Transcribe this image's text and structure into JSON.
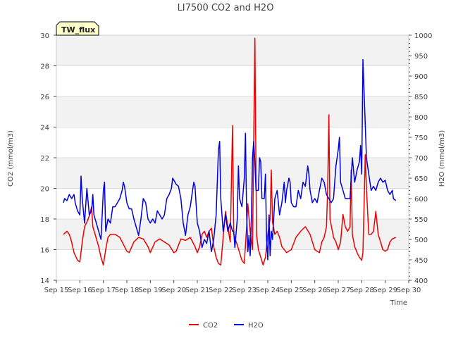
{
  "chart_data": {
    "type": "line",
    "title": "LI7500 CO2 and H2O",
    "xlabel": "Time",
    "ylabel_left": "CO2 (mmol/m3)",
    "ylabel_right": "H2O (mmol/m3)",
    "badge": "TW_flux",
    "x_unit": "days since Sep 15",
    "xlim": [
      0,
      15
    ],
    "ylim_left": [
      14,
      30
    ],
    "ylim_right": [
      400,
      1000
    ],
    "x_ticks": [
      {
        "x": 0,
        "label": "Sep 15"
      },
      {
        "x": 1,
        "label": "Sep 16"
      },
      {
        "x": 2,
        "label": "Sep 17"
      },
      {
        "x": 3,
        "label": "Sep 18"
      },
      {
        "x": 4,
        "label": "Sep 19"
      },
      {
        "x": 5,
        "label": "Sep 20"
      },
      {
        "x": 6,
        "label": "Sep 21"
      },
      {
        "x": 7,
        "label": "Sep 22"
      },
      {
        "x": 8,
        "label": "Sep 23"
      },
      {
        "x": 9,
        "label": "Sep 24"
      },
      {
        "x": 10,
        "label": "Sep 25"
      },
      {
        "x": 11,
        "label": "Sep 26"
      },
      {
        "x": 12,
        "label": "Sep 27"
      },
      {
        "x": 13,
        "label": "Sep 28"
      },
      {
        "x": 14,
        "label": "Sep 29"
      },
      {
        "x": 15,
        "label": "Sep 30"
      }
    ],
    "y_ticks_left": [
      14,
      16,
      18,
      20,
      22,
      24,
      26,
      28,
      30
    ],
    "y_ticks_right": [
      400,
      450,
      500,
      550,
      600,
      650,
      700,
      750,
      800,
      850,
      900,
      950,
      1000
    ],
    "legend": [
      {
        "name": "CO2",
        "color": "#ee0000"
      },
      {
        "name": "H2O",
        "color": "#0000dd"
      }
    ],
    "series": [
      {
        "name": "CO2",
        "axis": "left",
        "color": "#ee0000",
        "points": [
          [
            0.3,
            17.0
          ],
          [
            0.45,
            17.2
          ],
          [
            0.55,
            17.0
          ],
          [
            0.65,
            16.5
          ],
          [
            0.75,
            15.8
          ],
          [
            0.9,
            15.3
          ],
          [
            1.0,
            15.2
          ],
          [
            1.1,
            16.5
          ],
          [
            1.2,
            17.5
          ],
          [
            1.3,
            17.8
          ],
          [
            1.4,
            18.2
          ],
          [
            1.5,
            18.8
          ],
          [
            1.55,
            17.5
          ],
          [
            1.65,
            17.0
          ],
          [
            1.8,
            16.2
          ],
          [
            1.9,
            15.5
          ],
          [
            2.0,
            15.0
          ],
          [
            2.1,
            16.0
          ],
          [
            2.2,
            16.8
          ],
          [
            2.3,
            17.0
          ],
          [
            2.5,
            17.0
          ],
          [
            2.7,
            16.8
          ],
          [
            2.9,
            16.2
          ],
          [
            3.0,
            15.9
          ],
          [
            3.1,
            15.8
          ],
          [
            3.3,
            16.5
          ],
          [
            3.5,
            16.8
          ],
          [
            3.7,
            16.7
          ],
          [
            3.9,
            16.2
          ],
          [
            4.0,
            15.8
          ],
          [
            4.2,
            16.5
          ],
          [
            4.4,
            16.7
          ],
          [
            4.6,
            16.5
          ],
          [
            4.8,
            16.3
          ],
          [
            5.0,
            15.8
          ],
          [
            5.1,
            15.9
          ],
          [
            5.3,
            16.7
          ],
          [
            5.5,
            16.6
          ],
          [
            5.7,
            16.8
          ],
          [
            5.9,
            16.2
          ],
          [
            6.0,
            15.8
          ],
          [
            6.1,
            16.2
          ],
          [
            6.2,
            17.0
          ],
          [
            6.3,
            17.2
          ],
          [
            6.4,
            16.8
          ],
          [
            6.5,
            17.2
          ],
          [
            6.6,
            17.4
          ],
          [
            6.7,
            16.2
          ],
          [
            6.8,
            15.5
          ],
          [
            6.9,
            15.1
          ],
          [
            7.0,
            15.0
          ],
          [
            7.1,
            16.8
          ],
          [
            7.2,
            18.5
          ],
          [
            7.3,
            17.5
          ],
          [
            7.4,
            16.5
          ],
          [
            7.5,
            24.1
          ],
          [
            7.55,
            17.0
          ],
          [
            7.7,
            16.3
          ],
          [
            7.8,
            15.8
          ],
          [
            7.9,
            15.3
          ],
          [
            8.0,
            15.1
          ],
          [
            8.1,
            17.5
          ],
          [
            8.15,
            19.0
          ],
          [
            8.25,
            17.2
          ],
          [
            8.35,
            16.0
          ],
          [
            8.45,
            29.8
          ],
          [
            8.52,
            17.0
          ],
          [
            8.6,
            16.0
          ],
          [
            8.7,
            15.5
          ],
          [
            8.8,
            15.0
          ],
          [
            8.9,
            15.5
          ],
          [
            9.0,
            17.0
          ],
          [
            9.1,
            18.0
          ],
          [
            9.15,
            21.2
          ],
          [
            9.2,
            17.8
          ],
          [
            9.3,
            17.0
          ],
          [
            9.4,
            17.2
          ],
          [
            9.5,
            16.8
          ],
          [
            9.6,
            16.2
          ],
          [
            9.8,
            15.8
          ],
          [
            10.0,
            16.0
          ],
          [
            10.2,
            16.8
          ],
          [
            10.4,
            17.2
          ],
          [
            10.6,
            17.5
          ],
          [
            10.8,
            17.0
          ],
          [
            11.0,
            16.0
          ],
          [
            11.1,
            15.9
          ],
          [
            11.2,
            15.8
          ],
          [
            11.3,
            16.5
          ],
          [
            11.4,
            16.8
          ],
          [
            11.5,
            17.5
          ],
          [
            11.55,
            20.0
          ],
          [
            11.6,
            24.8
          ],
          [
            11.65,
            18.0
          ],
          [
            11.8,
            16.8
          ],
          [
            11.9,
            16.5
          ],
          [
            12.0,
            16.0
          ],
          [
            12.1,
            16.5
          ],
          [
            12.2,
            18.3
          ],
          [
            12.3,
            17.5
          ],
          [
            12.4,
            17.2
          ],
          [
            12.5,
            17.5
          ],
          [
            12.55,
            21.2
          ],
          [
            12.6,
            17.0
          ],
          [
            12.7,
            16.2
          ],
          [
            12.8,
            15.8
          ],
          [
            12.9,
            15.5
          ],
          [
            13.0,
            15.3
          ],
          [
            13.05,
            15.8
          ],
          [
            13.1,
            19.0
          ],
          [
            13.15,
            22.2
          ],
          [
            13.2,
            20.0
          ],
          [
            13.3,
            17.0
          ],
          [
            13.4,
            17.0
          ],
          [
            13.5,
            17.2
          ],
          [
            13.6,
            18.5
          ],
          [
            13.7,
            17.0
          ],
          [
            13.8,
            16.5
          ],
          [
            13.9,
            16.0
          ],
          [
            14.0,
            15.9
          ],
          [
            14.1,
            16.0
          ],
          [
            14.2,
            16.5
          ],
          [
            14.3,
            16.7
          ],
          [
            14.45,
            16.8
          ]
        ]
      },
      {
        "name": "H2O",
        "axis": "right",
        "color": "#0000dd",
        "points": [
          [
            0.3,
            590
          ],
          [
            0.35,
            600
          ],
          [
            0.45,
            595
          ],
          [
            0.55,
            610
          ],
          [
            0.65,
            600
          ],
          [
            0.75,
            610
          ],
          [
            0.8,
            590
          ],
          [
            0.9,
            570
          ],
          [
            1.0,
            560
          ],
          [
            1.05,
            655
          ],
          [
            1.1,
            600
          ],
          [
            1.2,
            540
          ],
          [
            1.3,
            625
          ],
          [
            1.4,
            560
          ],
          [
            1.5,
            570
          ],
          [
            1.55,
            610
          ],
          [
            1.6,
            560
          ],
          [
            1.7,
            540
          ],
          [
            1.8,
            520
          ],
          [
            1.9,
            500
          ],
          [
            2.0,
            620
          ],
          [
            2.05,
            640
          ],
          [
            2.1,
            520
          ],
          [
            2.2,
            550
          ],
          [
            2.3,
            540
          ],
          [
            2.4,
            580
          ],
          [
            2.5,
            580
          ],
          [
            2.6,
            590
          ],
          [
            2.7,
            600
          ],
          [
            2.8,
            620
          ],
          [
            2.85,
            640
          ],
          [
            2.9,
            630
          ],
          [
            3.0,
            590
          ],
          [
            3.1,
            575
          ],
          [
            3.2,
            575
          ],
          [
            3.3,
            550
          ],
          [
            3.5,
            510
          ],
          [
            3.6,
            550
          ],
          [
            3.7,
            600
          ],
          [
            3.8,
            590
          ],
          [
            3.9,
            550
          ],
          [
            4.0,
            540
          ],
          [
            4.1,
            550
          ],
          [
            4.2,
            540
          ],
          [
            4.3,
            570
          ],
          [
            4.5,
            550
          ],
          [
            4.6,
            560
          ],
          [
            4.7,
            600
          ],
          [
            4.8,
            610
          ],
          [
            4.9,
            625
          ],
          [
            4.95,
            650
          ],
          [
            5.0,
            645
          ],
          [
            5.1,
            635
          ],
          [
            5.2,
            630
          ],
          [
            5.3,
            600
          ],
          [
            5.4,
            540
          ],
          [
            5.5,
            510
          ],
          [
            5.6,
            560
          ],
          [
            5.7,
            580
          ],
          [
            5.8,
            620
          ],
          [
            5.85,
            640
          ],
          [
            5.9,
            630
          ],
          [
            6.0,
            540
          ],
          [
            6.1,
            520
          ],
          [
            6.2,
            480
          ],
          [
            6.3,
            500
          ],
          [
            6.4,
            490
          ],
          [
            6.5,
            520
          ],
          [
            6.6,
            470
          ],
          [
            6.7,
            500
          ],
          [
            6.8,
            560
          ],
          [
            6.9,
            720
          ],
          [
            6.95,
            740
          ],
          [
            7.0,
            600
          ],
          [
            7.1,
            520
          ],
          [
            7.2,
            560
          ],
          [
            7.3,
            520
          ],
          [
            7.4,
            540
          ],
          [
            7.5,
            520
          ],
          [
            7.55,
            520
          ],
          [
            7.6,
            480
          ],
          [
            7.7,
            550
          ],
          [
            7.75,
            680
          ],
          [
            7.8,
            600
          ],
          [
            7.9,
            580
          ],
          [
            8.0,
            650
          ],
          [
            8.05,
            760
          ],
          [
            8.1,
            560
          ],
          [
            8.15,
            470
          ],
          [
            8.2,
            510
          ],
          [
            8.25,
            460
          ],
          [
            8.3,
            550
          ],
          [
            8.35,
            700
          ],
          [
            8.4,
            740
          ],
          [
            8.45,
            690
          ],
          [
            8.5,
            620
          ],
          [
            8.6,
            620
          ],
          [
            8.65,
            700
          ],
          [
            8.7,
            690
          ],
          [
            8.75,
            600
          ],
          [
            8.85,
            600
          ],
          [
            8.9,
            660
          ],
          [
            8.95,
            500
          ],
          [
            9.0,
            450
          ],
          [
            9.05,
            560
          ],
          [
            9.1,
            460
          ],
          [
            9.15,
            520
          ],
          [
            9.2,
            500
          ],
          [
            9.3,
            600
          ],
          [
            9.4,
            620
          ],
          [
            9.5,
            560
          ],
          [
            9.6,
            590
          ],
          [
            9.7,
            640
          ],
          [
            9.75,
            590
          ],
          [
            9.8,
            620
          ],
          [
            9.9,
            650
          ],
          [
            9.95,
            640
          ],
          [
            10.0,
            590
          ],
          [
            10.1,
            580
          ],
          [
            10.2,
            580
          ],
          [
            10.3,
            620
          ],
          [
            10.4,
            600
          ],
          [
            10.5,
            640
          ],
          [
            10.6,
            630
          ],
          [
            10.7,
            680
          ],
          [
            10.75,
            660
          ],
          [
            10.8,
            620
          ],
          [
            10.9,
            590
          ],
          [
            11.0,
            600
          ],
          [
            11.1,
            590
          ],
          [
            11.2,
            620
          ],
          [
            11.3,
            650
          ],
          [
            11.4,
            640
          ],
          [
            11.5,
            610
          ],
          [
            11.6,
            600
          ],
          [
            11.7,
            590
          ],
          [
            11.8,
            600
          ],
          [
            11.9,
            680
          ],
          [
            12.0,
            720
          ],
          [
            12.05,
            750
          ],
          [
            12.1,
            640
          ],
          [
            12.2,
            620
          ],
          [
            12.3,
            600
          ],
          [
            12.4,
            600
          ],
          [
            12.5,
            600
          ],
          [
            12.6,
            700
          ],
          [
            12.7,
            640
          ],
          [
            12.8,
            670
          ],
          [
            12.9,
            690
          ],
          [
            12.95,
            730
          ],
          [
            13.0,
            660
          ],
          [
            13.05,
            940
          ],
          [
            13.1,
            860
          ],
          [
            13.2,
            700
          ],
          [
            13.3,
            660
          ],
          [
            13.4,
            620
          ],
          [
            13.5,
            630
          ],
          [
            13.6,
            620
          ],
          [
            13.7,
            640
          ],
          [
            13.8,
            650
          ],
          [
            13.9,
            640
          ],
          [
            14.0,
            645
          ],
          [
            14.1,
            620
          ],
          [
            14.2,
            610
          ],
          [
            14.3,
            620
          ],
          [
            14.35,
            600
          ],
          [
            14.45,
            595
          ]
        ]
      }
    ]
  }
}
